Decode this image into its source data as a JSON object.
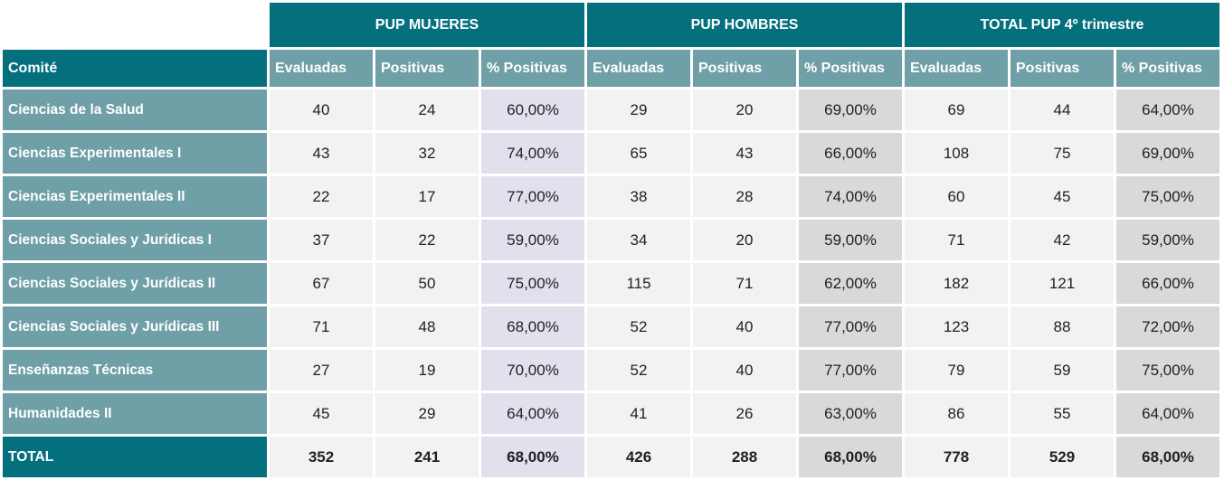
{
  "table": {
    "corner_label": "",
    "committee_header": "Comité",
    "groups": [
      {
        "label": "PUP MUJERES"
      },
      {
        "label": "PUP HOMBRES"
      },
      {
        "label": "TOTAL PUP 4º trimestre"
      }
    ],
    "sub_headers": [
      "Evaluadas",
      "Positivas",
      "% Positivas"
    ],
    "rows": [
      {
        "committee": "Ciencias de la Salud",
        "values": [
          "40",
          "24",
          "60,00%",
          "29",
          "20",
          "69,00%",
          "69",
          "44",
          "64,00%"
        ]
      },
      {
        "committee": "Ciencias Experimentales I",
        "values": [
          "43",
          "32",
          "74,00%",
          "65",
          "43",
          "66,00%",
          "108",
          "75",
          "69,00%"
        ]
      },
      {
        "committee": "Ciencias Experimentales II",
        "values": [
          "22",
          "17",
          "77,00%",
          "38",
          "28",
          "74,00%",
          "60",
          "45",
          "75,00%"
        ]
      },
      {
        "committee": "Ciencias Sociales y Jurídicas I",
        "values": [
          "37",
          "22",
          "59,00%",
          "34",
          "20",
          "59,00%",
          "71",
          "42",
          "59,00%"
        ]
      },
      {
        "committee": "Ciencias Sociales y Jurídicas II",
        "values": [
          "67",
          "50",
          "75,00%",
          "115",
          "71",
          "62,00%",
          "182",
          "121",
          "66,00%"
        ]
      },
      {
        "committee": "Ciencias Sociales y Jurídicas III",
        "values": [
          "71",
          "48",
          "68,00%",
          "52",
          "40",
          "77,00%",
          "123",
          "88",
          "72,00%"
        ]
      },
      {
        "committee": "Enseñanzas Técnicas",
        "values": [
          "27",
          "19",
          "70,00%",
          "52",
          "40",
          "77,00%",
          "79",
          "59",
          "75,00%"
        ]
      },
      {
        "committee": "Humanidades II",
        "values": [
          "45",
          "29",
          "64,00%",
          "41",
          "26",
          "63,00%",
          "86",
          "55",
          "64,00%"
        ]
      }
    ],
    "total_row": {
      "committee": "TOTAL",
      "values": [
        "352",
        "241",
        "68,00%",
        "426",
        "288",
        "68,00%",
        "778",
        "529",
        "68,00%"
      ]
    }
  },
  "colors": {
    "dark_teal": "#046f7d",
    "medium_teal": "#6f9fa7",
    "cell_background": "#f2f2f1",
    "percent_mujeres_background": "#e3e0ee",
    "percent_gray_background": "#d9d9d9",
    "header_text": "#ffffff",
    "value_text": "#212121"
  },
  "chart_data": {
    "type": "table",
    "title": "",
    "column_groups": [
      "PUP MUJERES",
      "PUP HOMBRES",
      "TOTAL PUP 4º trimestre"
    ],
    "columns": [
      "Comité",
      "Evaluadas",
      "Positivas",
      "% Positivas",
      "Evaluadas",
      "Positivas",
      "% Positivas",
      "Evaluadas",
      "Positivas",
      "% Positivas"
    ],
    "rows": [
      [
        "Ciencias de la Salud",
        40,
        24,
        60.0,
        29,
        20,
        69.0,
        69,
        44,
        64.0
      ],
      [
        "Ciencias Experimentales I",
        43,
        32,
        74.0,
        65,
        43,
        66.0,
        108,
        75,
        69.0
      ],
      [
        "Ciencias Experimentales II",
        22,
        17,
        77.0,
        38,
        28,
        74.0,
        60,
        45,
        75.0
      ],
      [
        "Ciencias Sociales y Jurídicas I",
        37,
        22,
        59.0,
        34,
        20,
        59.0,
        71,
        42,
        59.0
      ],
      [
        "Ciencias Sociales y Jurídicas II",
        67,
        50,
        75.0,
        115,
        71,
        62.0,
        182,
        121,
        66.0
      ],
      [
        "Ciencias Sociales y Jurídicas III",
        71,
        48,
        68.0,
        52,
        40,
        77.0,
        123,
        88,
        72.0
      ],
      [
        "Enseñanzas Técnicas",
        27,
        19,
        70.0,
        52,
        40,
        77.0,
        79,
        59,
        75.0
      ],
      [
        "Humanidades II",
        45,
        29,
        64.0,
        41,
        26,
        63.0,
        86,
        55,
        64.0
      ],
      [
        "TOTAL",
        352,
        241,
        68.0,
        426,
        288,
        68.0,
        778,
        529,
        68.0
      ]
    ],
    "percent_unit": "%",
    "decimal_separator": ","
  }
}
